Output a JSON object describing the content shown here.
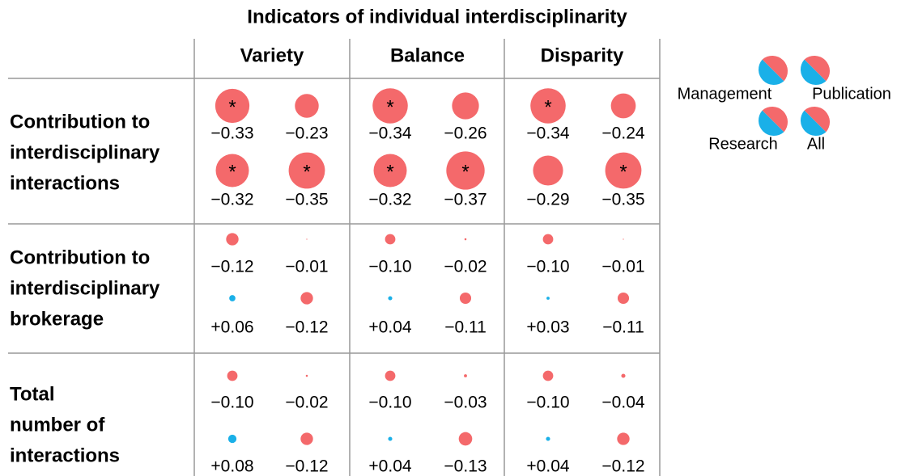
{
  "title": "Indicators of individual interdisciplinarity",
  "columns": [
    "Variety",
    "Balance",
    "Disparity"
  ],
  "legend": [
    "Management",
    "Publication",
    "Research",
    "All"
  ],
  "rows": [
    {
      "label": [
        "Contribution to",
        "interdisciplinary",
        "interactions"
      ],
      "cells": [
        [
          {
            "value": -0.33,
            "label": "−0.33",
            "mark": "*"
          },
          {
            "value": -0.23,
            "label": "−0.23"
          },
          {
            "value": -0.32,
            "label": "−0.32",
            "mark": "*"
          },
          {
            "value": -0.35,
            "label": "−0.35",
            "mark": "*"
          }
        ],
        [
          {
            "value": -0.34,
            "label": "−0.34",
            "mark": "*"
          },
          {
            "value": -0.26,
            "label": "−0.26"
          },
          {
            "value": -0.32,
            "label": "−0.32",
            "mark": "*"
          },
          {
            "value": -0.37,
            "label": "−0.37",
            "mark": "*"
          }
        ],
        [
          {
            "value": -0.34,
            "label": "−0.34",
            "mark": "*"
          },
          {
            "value": -0.24,
            "label": "−0.24"
          },
          {
            "value": -0.29,
            "label": "−0.29"
          },
          {
            "value": -0.35,
            "label": "−0.35",
            "mark": "*"
          }
        ]
      ]
    },
    {
      "label": [
        "Contribution to",
        "interdisciplinary",
        "brokerage"
      ],
      "cells": [
        [
          {
            "value": -0.12,
            "label": "−0.12"
          },
          {
            "value": -0.01,
            "label": "−0.01"
          },
          {
            "value": 0.06,
            "label": "+0.06"
          },
          {
            "value": -0.12,
            "label": "−0.12"
          }
        ],
        [
          {
            "value": -0.1,
            "label": "−0.10"
          },
          {
            "value": -0.02,
            "label": "−0.02"
          },
          {
            "value": 0.04,
            "label": "+0.04"
          },
          {
            "value": -0.11,
            "label": "−0.11"
          }
        ],
        [
          {
            "value": -0.1,
            "label": "−0.10"
          },
          {
            "value": -0.01,
            "label": "−0.01"
          },
          {
            "value": 0.03,
            "label": "+0.03"
          },
          {
            "value": -0.11,
            "label": "−0.11"
          }
        ]
      ]
    },
    {
      "label": [
        "Total",
        "number of",
        "interactions"
      ],
      "cells": [
        [
          {
            "value": -0.1,
            "label": "−0.10"
          },
          {
            "value": -0.02,
            "label": "−0.02"
          },
          {
            "value": 0.08,
            "label": "+0.08"
          },
          {
            "value": -0.12,
            "label": "−0.12"
          }
        ],
        [
          {
            "value": -0.1,
            "label": "−0.10"
          },
          {
            "value": -0.03,
            "label": "−0.03"
          },
          {
            "value": 0.04,
            "label": "+0.04"
          },
          {
            "value": -0.13,
            "label": "−0.13"
          }
        ],
        [
          {
            "value": -0.1,
            "label": "−0.10"
          },
          {
            "value": -0.04,
            "label": "−0.04"
          },
          {
            "value": 0.04,
            "label": "+0.04"
          },
          {
            "value": -0.12,
            "label": "−0.12"
          }
        ]
      ]
    }
  ]
}
